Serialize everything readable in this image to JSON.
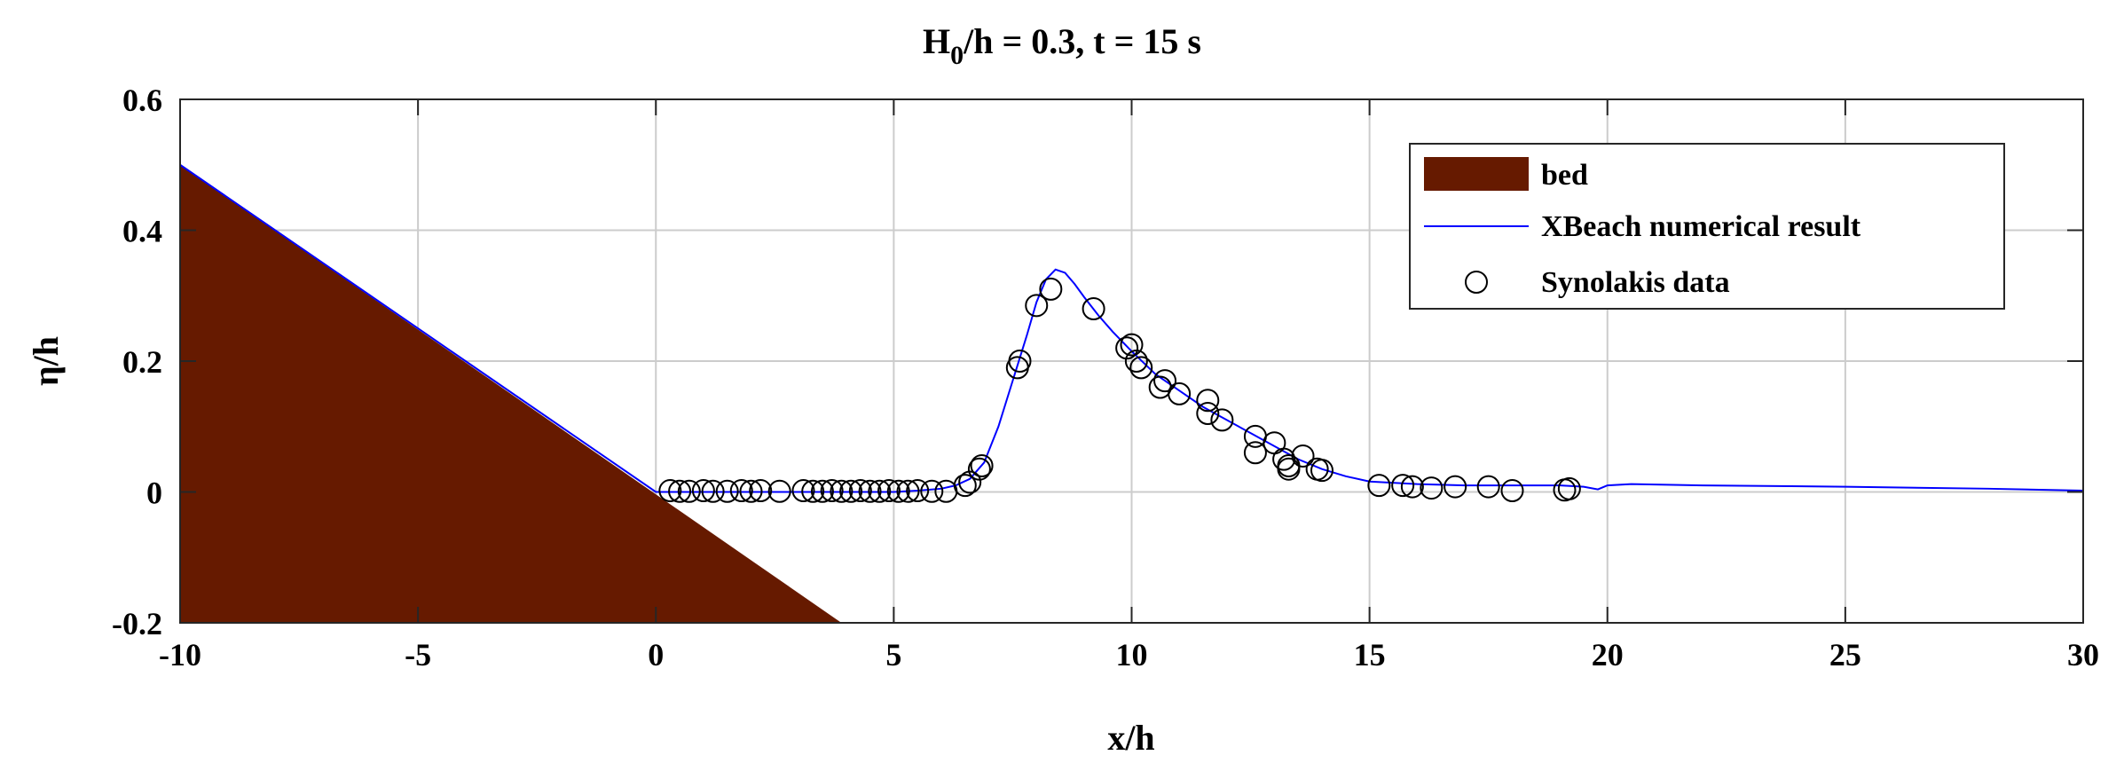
{
  "chart_data": {
    "type": "line",
    "title_main": "H",
    "title_sub": "0",
    "title_rest": "/h = 0.3, t = 15 s",
    "xlabel": "x/h",
    "ylabel": "η/h",
    "xlim": [
      -10,
      30
    ],
    "ylim": [
      -0.2,
      0.6
    ],
    "xticks": [
      -10,
      -5,
      0,
      5,
      10,
      15,
      20,
      25,
      30
    ],
    "xtick_labels": [
      "-10",
      "-5",
      "0",
      "5",
      "10",
      "15",
      "20",
      "25",
      "30"
    ],
    "yticks": [
      -0.2,
      0,
      0.2,
      0.4,
      0.6
    ],
    "ytick_labels": [
      "-0.2",
      "0",
      "0.2",
      "0.4",
      "0.6"
    ],
    "grid": true,
    "legend_position": "top-right",
    "bed": {
      "name": "bed",
      "color": "#661a00",
      "x": [
        -10,
        3.9
      ],
      "y": [
        0.5,
        -0.2
      ]
    },
    "series": [
      {
        "name": "XBeach numerical result",
        "color": "#0000ff",
        "x": [
          -10,
          0,
          1,
          2,
          3,
          4,
          5,
          5.5,
          6,
          6.3,
          6.6,
          6.9,
          7.2,
          7.5,
          7.8,
          8.0,
          8.2,
          8.4,
          8.6,
          8.8,
          9.0,
          9.3,
          9.6,
          10.0,
          10.5,
          11.0,
          11.5,
          12.0,
          12.5,
          13.0,
          13.5,
          14.0,
          14.5,
          15.0,
          16,
          17,
          18,
          19,
          19.5,
          19.8,
          20.0,
          20.5,
          22,
          25,
          28,
          30
        ],
        "y": [
          0.5,
          0,
          0,
          0,
          0,
          0,
          0,
          0.002,
          0.005,
          0.01,
          0.02,
          0.045,
          0.1,
          0.17,
          0.24,
          0.29,
          0.325,
          0.34,
          0.335,
          0.318,
          0.298,
          0.27,
          0.245,
          0.215,
          0.18,
          0.155,
          0.13,
          0.11,
          0.09,
          0.07,
          0.05,
          0.035,
          0.024,
          0.016,
          0.012,
          0.01,
          0.01,
          0.01,
          0.008,
          0.004,
          0.01,
          0.012,
          0.01,
          0.008,
          0.005,
          0.002
        ]
      },
      {
        "name": "Synolakis data",
        "color": "#000000",
        "marker": "circle",
        "x": [
          0.3,
          0.5,
          0.7,
          1.0,
          1.2,
          1.5,
          1.8,
          2.0,
          2.2,
          2.6,
          3.1,
          3.3,
          3.5,
          3.7,
          3.9,
          4.1,
          4.3,
          4.5,
          4.7,
          4.9,
          5.1,
          5.3,
          5.5,
          5.8,
          6.1,
          6.5,
          6.6,
          6.8,
          6.85,
          7.6,
          7.65,
          8.0,
          8.3,
          9.2,
          9.9,
          10.0,
          10.1,
          10.2,
          10.6,
          10.7,
          11.0,
          11.6,
          11.6,
          11.9,
          12.6,
          12.6,
          13.0,
          13.2,
          13.3,
          13.3,
          13.6,
          13.9,
          14.0,
          15.2,
          15.7,
          15.9,
          16.3,
          16.8,
          17.5,
          18.0,
          19.1,
          19.2
        ],
        "y": [
          0.002,
          0.001,
          0.001,
          0.002,
          0.001,
          0.001,
          0.002,
          0.001,
          0.002,
          0.001,
          0.002,
          0.001,
          0.001,
          0.002,
          0.001,
          0.001,
          0.002,
          0.001,
          0.001,
          0.002,
          0.001,
          0.001,
          0.002,
          0.001,
          0.001,
          0.01,
          0.015,
          0.035,
          0.04,
          0.19,
          0.2,
          0.285,
          0.31,
          0.28,
          0.22,
          0.225,
          0.2,
          0.19,
          0.16,
          0.17,
          0.15,
          0.14,
          0.12,
          0.11,
          0.085,
          0.06,
          0.075,
          0.05,
          0.035,
          0.04,
          0.055,
          0.035,
          0.033,
          0.01,
          0.01,
          0.008,
          0.006,
          0.008,
          0.008,
          0.002,
          0.003,
          0.005
        ]
      }
    ]
  }
}
